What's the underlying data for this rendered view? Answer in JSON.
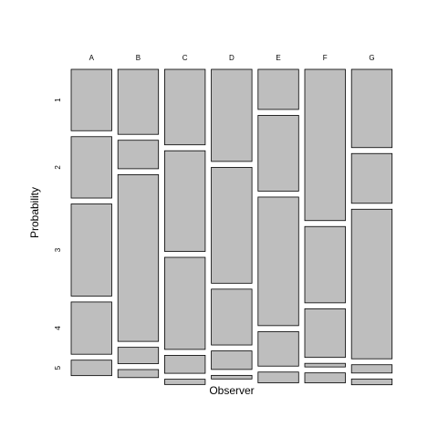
{
  "chart_data": {
    "type": "mosaic",
    "xlabel": "Observer",
    "ylabel": "Probability",
    "categories": [
      "A",
      "B",
      "C",
      "D",
      "E",
      "F",
      "G"
    ],
    "rows": [
      "1",
      "2",
      "3",
      "4",
      "5"
    ],
    "proportions": [
      [
        0.222,
        0.222,
        0.333,
        0.189,
        0.056
      ],
      [
        0.235,
        0.103,
        0.603,
        0.059,
        0.029
      ],
      [
        0.273,
        0.364,
        0.333,
        0.065,
        0.019
      ],
      [
        0.333,
        0.419,
        0.202,
        0.067,
        0.013
      ],
      [
        0.145,
        0.274,
        0.465,
        0.125,
        0.039
      ],
      [
        0.547,
        0.276,
        0.176,
        0.013,
        0.036
      ],
      [
        0.283,
        0.18,
        0.541,
        0.03,
        0.021
      ]
    ],
    "fill_color": "#bebebe",
    "stroke_color": "#000000"
  }
}
